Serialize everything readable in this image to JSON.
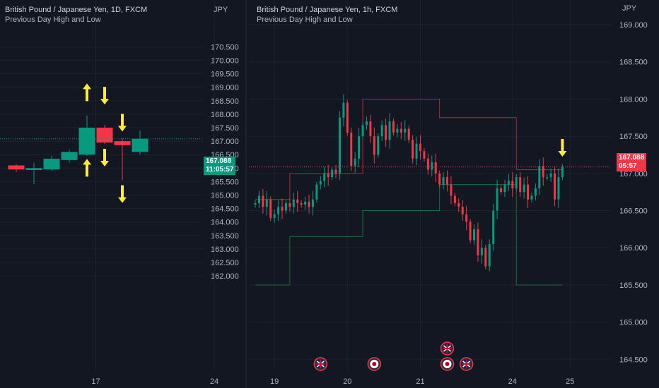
{
  "colors": {
    "background": "#131722",
    "grid": "#1e222d",
    "up": "#089981",
    "down": "#f23645",
    "text": "#b2b5be",
    "arrow": "#ffeb3b",
    "prev_high": "#b22833",
    "prev_low": "#1e6b3c"
  },
  "chart_data": [
    {
      "type": "candlestick",
      "title": "British Pound / Japanese Yen, 1D, FXCM",
      "subtitle": "Previous Day High and Low",
      "currency_label": "JPY",
      "y_ticks": [
        170.5,
        170.0,
        169.5,
        169.0,
        168.5,
        168.0,
        167.5,
        167.0,
        166.5,
        166.0,
        165.5,
        165.0,
        164.5,
        164.0,
        163.5,
        163.0,
        162.5,
        162.0
      ],
      "ylim": [
        161.6,
        171.1
      ],
      "x_ticks": [
        {
          "label": "17",
          "index": 4.5
        },
        {
          "label": "24",
          "index": 11.2
        }
      ],
      "candles": [
        {
          "index": 0,
          "o": 166.1,
          "h": 166.15,
          "l": 165.85,
          "c": 165.95
        },
        {
          "index": 1,
          "o": 165.93,
          "h": 166.2,
          "l": 165.4,
          "c": 166.0
        },
        {
          "index": 2,
          "o": 165.95,
          "h": 166.45,
          "l": 165.9,
          "c": 166.35
        },
        {
          "index": 3,
          "o": 166.3,
          "h": 166.7,
          "l": 166.2,
          "c": 166.6
        },
        {
          "index": 4,
          "o": 166.5,
          "h": 167.95,
          "l": 166.45,
          "c": 167.5
        },
        {
          "index": 5,
          "o": 167.5,
          "h": 167.6,
          "l": 166.9,
          "c": 166.95
        },
        {
          "index": 6,
          "o": 167.0,
          "h": 167.1,
          "l": 165.55,
          "c": 166.85
        },
        {
          "index": 7,
          "o": 166.6,
          "h": 167.4,
          "l": 166.5,
          "c": 167.088
        }
      ],
      "arrows": [
        {
          "dir": "up",
          "index": 4,
          "price": 168.8
        },
        {
          "dir": "down",
          "index": 5,
          "price": 168.7
        },
        {
          "dir": "down",
          "index": 6,
          "price": 167.7
        },
        {
          "dir": "down",
          "index": 5,
          "price": 166.4
        },
        {
          "dir": "up",
          "index": 4,
          "price": 166.0
        },
        {
          "dir": "down",
          "index": 6,
          "price": 165.05
        }
      ],
      "last_price": {
        "value": 167.088,
        "price_label": "167.088",
        "countdown": "11:05:57"
      }
    },
    {
      "type": "candlestick",
      "title": "British Pound / Japanese Yen, 1h, FXCM",
      "subtitle": "Previous Day High and Low",
      "currency_label": "JPY",
      "y_ticks": [
        169.0,
        168.5,
        168.0,
        167.5,
        167.0,
        166.5,
        166.0,
        165.5,
        165.0,
        164.5
      ],
      "ylim": [
        164.4,
        169.1
      ],
      "x_ticks": [
        {
          "label": "19",
          "index": 5
        },
        {
          "label": "20",
          "index": 24
        },
        {
          "label": "21",
          "index": 43
        },
        {
          "label": "24",
          "index": 67
        },
        {
          "label": "25",
          "index": 82
        }
      ],
      "closes": [
        166.6,
        166.7,
        166.55,
        166.65,
        166.4,
        166.45,
        166.55,
        166.5,
        166.6,
        166.55,
        166.65,
        166.6,
        166.58,
        166.62,
        166.55,
        166.65,
        166.85,
        166.9,
        167.0,
        166.95,
        167.05,
        167.0,
        167.75,
        167.95,
        167.55,
        167.1,
        167.2,
        167.5,
        167.65,
        167.7,
        167.5,
        167.25,
        167.5,
        167.65,
        167.45,
        167.7,
        167.55,
        167.6,
        167.55,
        167.6,
        167.45,
        167.2,
        167.4,
        167.3,
        167.2,
        167.05,
        167.15,
        167.0,
        166.85,
        166.95,
        166.85,
        166.7,
        166.6,
        166.55,
        166.45,
        166.35,
        166.1,
        166.25,
        165.9,
        166.0,
        165.75,
        166.05,
        166.5,
        166.8,
        166.75,
        166.85,
        166.9,
        166.8,
        166.95,
        166.75,
        166.85,
        166.65,
        166.7,
        166.8,
        167.1,
        166.95,
        166.95,
        167.0,
        166.65,
        166.95,
        167.088
      ],
      "prev_day_high": [
        {
          "from": 0,
          "to": 9,
          "value": 166.65
        },
        {
          "from": 9,
          "to": 28,
          "value": 167.0
        },
        {
          "from": 28,
          "to": 48,
          "value": 168.0
        },
        {
          "from": 48,
          "to": 68,
          "value": 167.75
        },
        {
          "from": 68,
          "to": 80,
          "value": 167.05
        }
      ],
      "prev_day_low": [
        {
          "from": 0,
          "to": 9,
          "value": 165.5
        },
        {
          "from": 9,
          "to": 28,
          "value": 166.15
        },
        {
          "from": 28,
          "to": 48,
          "value": 166.5
        },
        {
          "from": 48,
          "to": 68,
          "value": 166.85
        },
        {
          "from": 68,
          "to": 80,
          "value": 165.5
        }
      ],
      "arrows": [
        {
          "dir": "down",
          "index": 80,
          "price": 167.35
        }
      ],
      "events": [
        {
          "icon": "uk-flag-icon",
          "index": 17,
          "row": 0
        },
        {
          "icon": "japan-flag-icon",
          "index": 31,
          "row": 0
        },
        {
          "icon": "uk-flag-icon",
          "index": 50,
          "row": 1
        },
        {
          "icon": "japan-flag-icon",
          "index": 50,
          "row": 0
        },
        {
          "icon": "uk-flag-icon",
          "index": 55,
          "row": 0
        }
      ],
      "last_price": {
        "value": 167.088,
        "price_label": "167.088",
        "countdown": "05:57"
      }
    }
  ]
}
